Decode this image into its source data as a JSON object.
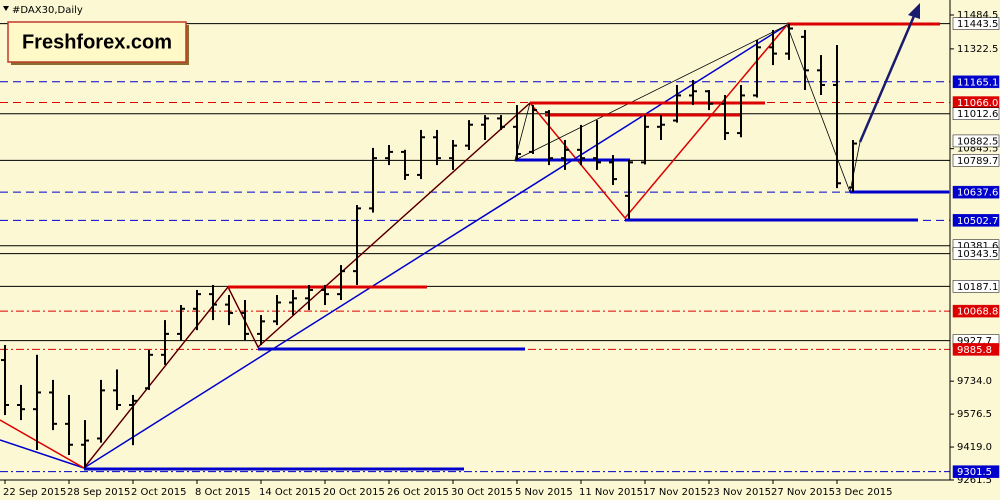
{
  "chart_data": {
    "type": "ohlc",
    "title": "#DAX30,Daily",
    "logo": "Freshforex.com",
    "color": "#000000",
    "categories": [
      "22 Sep 2015",
      null,
      null,
      null,
      "28 Sep 2015",
      null,
      null,
      null,
      "2 Oct 2015",
      null,
      null,
      null,
      "8 Oct 2015",
      null,
      null,
      null,
      "14 Oct 2015",
      null,
      null,
      null,
      "20 Oct 2015",
      null,
      null,
      null,
      "26 Oct 2015",
      null,
      null,
      null,
      "30 Oct 2015",
      null,
      null,
      null,
      "5 Nov 2015",
      null,
      null,
      null,
      "11 Nov 2015",
      null,
      null,
      null,
      "17 Nov 2015",
      null,
      null,
      null,
      "23 Nov 2015",
      null,
      null,
      null,
      "27 Nov 2015",
      null,
      null,
      null,
      "3 Dec 2015",
      null
    ],
    "open": [
      9835,
      9620,
      9600,
      9680,
      9530,
      9430,
      9460,
      9690,
      9620,
      9700,
      9860,
      9960,
      10080,
      10150,
      10100,
      10060,
      9960,
      10020,
      10110,
      10130,
      10170,
      10150,
      10260,
      10560,
      10800,
      10830,
      10720,
      10900,
      10800,
      10860,
      10960,
      10990,
      10950,
      10830,
      11020,
      10800,
      10840,
      10800,
      10780,
      10620,
      10780,
      10950,
      10980,
      11100,
      11120,
      11060,
      10920,
      11100,
      11330,
      11300,
      11380,
      11220,
      11150,
      10660
    ],
    "high": [
      9907,
      9716,
      9860,
      9740,
      9668,
      9548,
      9740,
      9790,
      9668,
      9883,
      10026,
      10098,
      10170,
      10194,
      10146,
      10122,
      10050,
      10146,
      10170,
      10194,
      10194,
      10289,
      10576,
      10849,
      10863,
      10840,
      10935,
      10935,
      10887,
      10982,
      11006,
      11006,
      11054,
      11054,
      11030,
      10887,
      10959,
      10982,
      10815,
      10791,
      11006,
      11006,
      11150,
      11174,
      11126,
      11102,
      11150,
      11365,
      11413,
      11443.5,
      11413,
      11293,
      11341,
      10887
    ],
    "low": [
      9572,
      9548,
      9405,
      9500,
      9381,
      9318,
      9440,
      9596,
      9428,
      9692,
      9812,
      9930,
      9978,
      10026,
      10002,
      9930,
      9907,
      10002,
      10050,
      10074,
      10098,
      10122,
      10194,
      10540,
      10767,
      10696,
      10700,
      10767,
      10744,
      10839,
      10887,
      10935,
      10791,
      10820,
      10767,
      10744,
      10767,
      10744,
      10672,
      10510,
      10770,
      10887,
      10970,
      11054,
      11030,
      10887,
      10900,
      11090,
      11245,
      11270,
      11126,
      11102,
      10657,
      10637.6
    ],
    "close": [
      9620,
      9600,
      9680,
      9530,
      9430,
      9450,
      9690,
      9620,
      9640,
      9860,
      9960,
      10080,
      10150,
      10100,
      10060,
      9960,
      10020,
      10110,
      10130,
      10170,
      10150,
      10260,
      10560,
      10800,
      10830,
      10720,
      10900,
      10800,
      10860,
      10960,
      10990,
      10950,
      10820,
      11030,
      10800,
      10840,
      10800,
      10780,
      10700,
      10780,
      10950,
      10960,
      11100,
      11120,
      11060,
      10920,
      11100,
      11330,
      11300,
      11420,
      11220,
      11150,
      10680,
      10870
    ],
    "ylim": [
      9261.5,
      11484.5
    ],
    "yticks": [
      11484.5,
      11322.5,
      10845.5,
      {
        "value": 9734,
        "label": "9734.0"
      },
      9576.5,
      {
        "value": 9419,
        "label": "9419.0"
      },
      9261.5
    ],
    "levels": [
      {
        "value": 11443.5,
        "label": "11443.5",
        "color": "#000000",
        "dash": "solid"
      },
      {
        "value": 11165.1,
        "label": "11165.1",
        "color": "#0000cc",
        "dash": "dash"
      },
      {
        "value": 11066,
        "label": "11066.0",
        "color": "#dd0000",
        "dash": "dash"
      },
      {
        "value": 11012.6,
        "label": "11012.6",
        "color": "#000000",
        "dash": "solid"
      },
      {
        "value": 10882.5,
        "label": "10882.5",
        "color": "#000000",
        "dash": "none"
      },
      {
        "value": 10789.7,
        "label": "10789.7",
        "color": "#000000",
        "dash": "solid"
      },
      {
        "value": 10637.6,
        "label": "10637.6",
        "color": "#0000cc",
        "dash": "dash"
      },
      {
        "value": 10502.7,
        "label": "10502.7",
        "color": "#0000cc",
        "dash": "dash"
      },
      {
        "value": 10381.6,
        "label": "10381.6",
        "color": "#000000",
        "dash": "solid"
      },
      {
        "value": 10343.5,
        "label": "10343.5",
        "color": "#000000",
        "dash": "solid"
      },
      {
        "value": 10187.1,
        "label": "10187.1",
        "color": "#000000",
        "dash": "solid"
      },
      {
        "value": 10068.8,
        "label": "10068.8",
        "color": "#dd0000",
        "dash": "dashdot"
      },
      {
        "value": 9927.7,
        "label": "9927.7",
        "color": "#000000",
        "dash": "solid"
      },
      {
        "value": 9885.8,
        "label": "9885.8",
        "color": "#dd0000",
        "dash": "dashdot"
      },
      {
        "value": 9301.5,
        "label": "9301.5",
        "color": "#0000cc",
        "dash": "dashdot"
      }
    ]
  }
}
